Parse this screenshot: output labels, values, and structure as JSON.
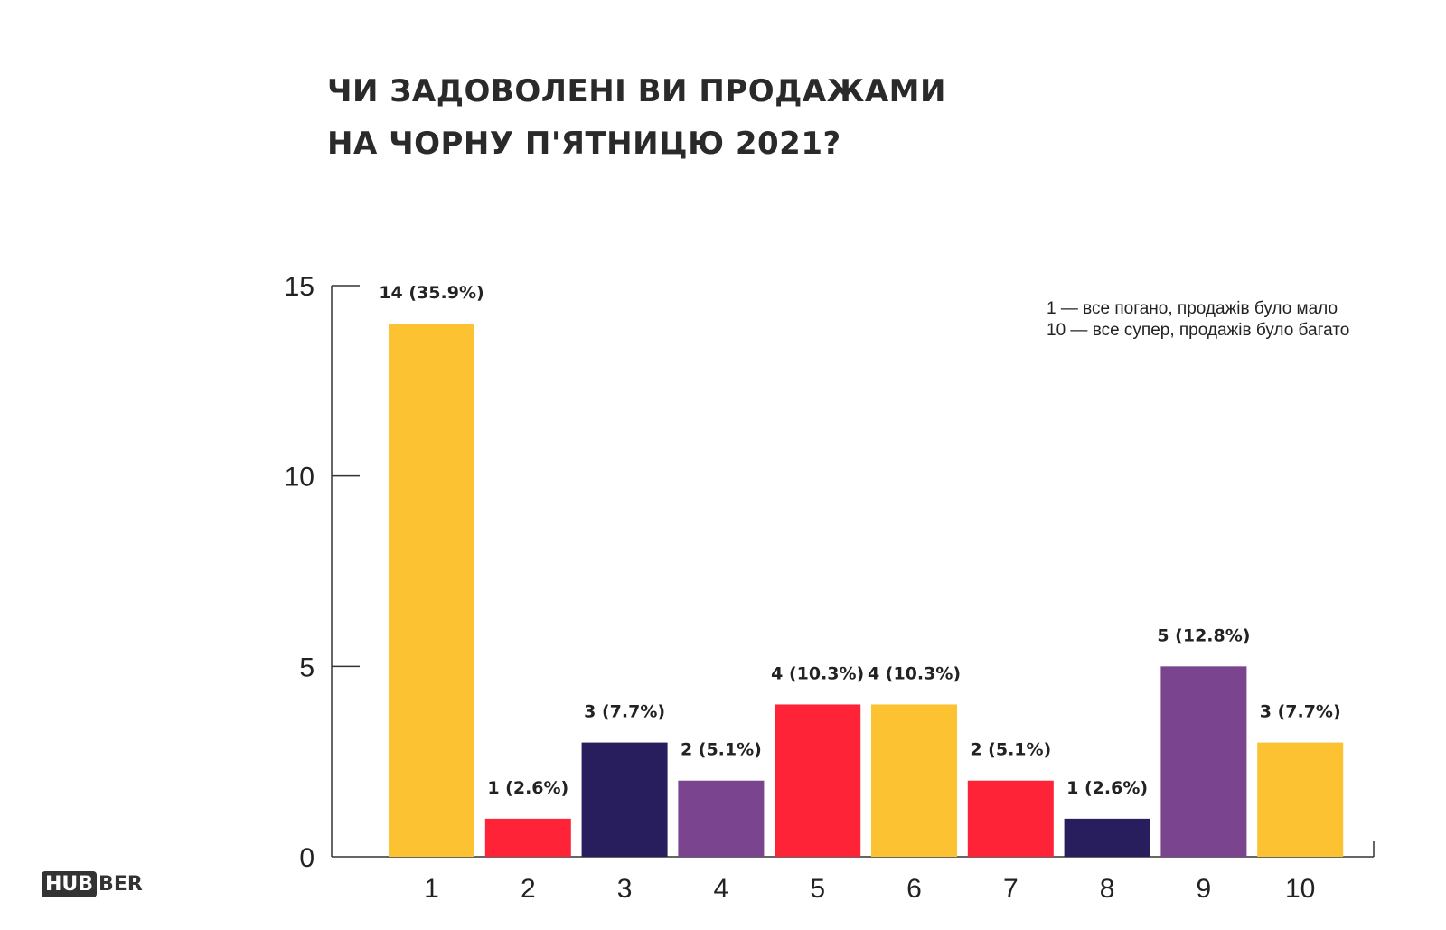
{
  "title": {
    "line1": "ЧИ ЗАДОВОЛЕНІ ВИ ПРОДАЖАМИ",
    "line2": "НА ЧОРНУ П'ЯТНИЦЮ 2021?"
  },
  "note": {
    "line1": "1 — все погано, продажів було мало",
    "line2": "10 — все супер, продажів було багато"
  },
  "logo": {
    "part1": "HUB",
    "part2": "BER"
  },
  "chart_data": {
    "type": "bar",
    "title": "ЧИ ЗАДОВОЛЕНІ ВИ ПРОДАЖАМИ НА ЧОРНУ П'ЯТНИЦЮ 2021?",
    "categories": [
      "1",
      "2",
      "3",
      "4",
      "5",
      "6",
      "7",
      "8",
      "9",
      "10"
    ],
    "values": [
      14,
      1,
      3,
      2,
      4,
      4,
      2,
      1,
      5,
      3
    ],
    "labels": [
      "14 (35.9%)",
      "1 (2.6%)",
      "3 (7.7%)",
      "2 (5.1%)",
      "4 (10.3%)",
      "4 (10.3%)",
      "2 (5.1%)",
      "1 (2.6%)",
      "5 (12.8%)",
      "3 (7.7%)"
    ],
    "colors": [
      "#FCC232",
      "#FF2338",
      "#281E5D",
      "#7B448E",
      "#FF2338",
      "#FCC232",
      "#FF2338",
      "#281E5D",
      "#7B448E",
      "#FCC232"
    ],
    "yticks": [
      0,
      5,
      10,
      15
    ],
    "ylim": [
      0,
      15
    ],
    "xlabel": "",
    "ylabel": "",
    "grid": false
  }
}
